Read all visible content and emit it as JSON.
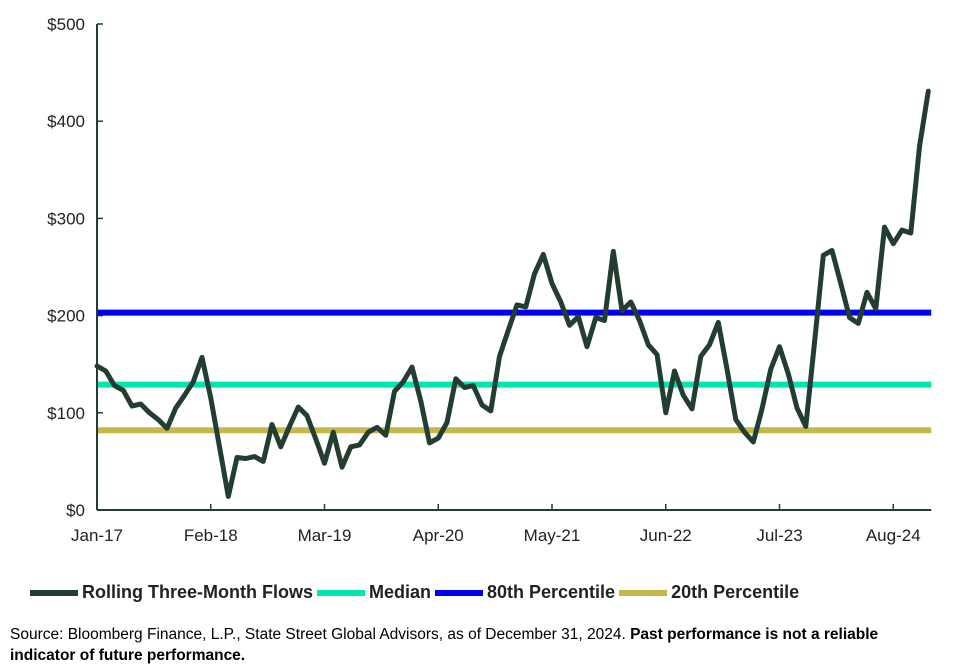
{
  "chart_data": {
    "type": "line",
    "title": "",
    "xlabel": "",
    "ylabel": "",
    "ylim": [
      0,
      500
    ],
    "yticks": [
      "$0",
      "$100",
      "$200",
      "$300",
      "$400",
      "$500"
    ],
    "ytick_values": [
      0,
      100,
      200,
      300,
      400,
      500
    ],
    "xtick_labels": [
      "Jan-17",
      "Feb-18",
      "Mar-19",
      "Apr-20",
      "May-21",
      "Jun-22",
      "Jul-23",
      "Aug-24"
    ],
    "xtick_month_index": [
      0,
      13,
      26,
      39,
      52,
      65,
      78,
      91
    ],
    "grid": false,
    "legend_placement": "bottom",
    "x_start": "Jan-17",
    "x_end": "Dec-24",
    "x_frequency": "monthly",
    "series": [
      {
        "name": "Rolling Three-Month Flows",
        "color": "#243d31",
        "values": [
          148,
          143,
          128,
          123,
          107,
          109,
          100,
          93,
          84,
          105,
          118,
          132,
          157,
          115,
          65,
          14,
          54,
          53,
          55,
          50,
          88,
          65,
          86,
          106,
          97,
          73,
          48,
          80,
          44,
          65,
          67,
          80,
          85,
          77,
          122,
          132,
          147,
          112,
          69,
          74,
          90,
          135,
          126,
          128,
          108,
          102,
          158,
          185,
          211,
          209,
          243,
          263,
          233,
          214,
          190,
          199,
          168,
          198,
          195,
          266,
          205,
          214,
          195,
          170,
          160,
          100,
          143,
          118,
          104,
          158,
          170,
          193,
          145,
          93,
          80,
          70,
          104,
          145,
          168,
          140,
          105,
          86,
          172,
          262,
          267,
          233,
          198,
          192,
          224,
          207,
          291,
          274,
          288,
          285,
          374,
          431
        ]
      },
      {
        "name": "Median",
        "color": "#00e6b0",
        "constant": 129
      },
      {
        "name": "80th Percentile",
        "color": "#0000ee",
        "constant": 203
      },
      {
        "name": "20th Percentile",
        "color": "#c4b84a",
        "constant": 82
      }
    ]
  },
  "source": {
    "text": "Source: Bloomberg Finance, L.P., State Street Global Advisors, as of December 31, 2024. ",
    "bold": "Past performance is not a reliable indicator of future performance."
  }
}
